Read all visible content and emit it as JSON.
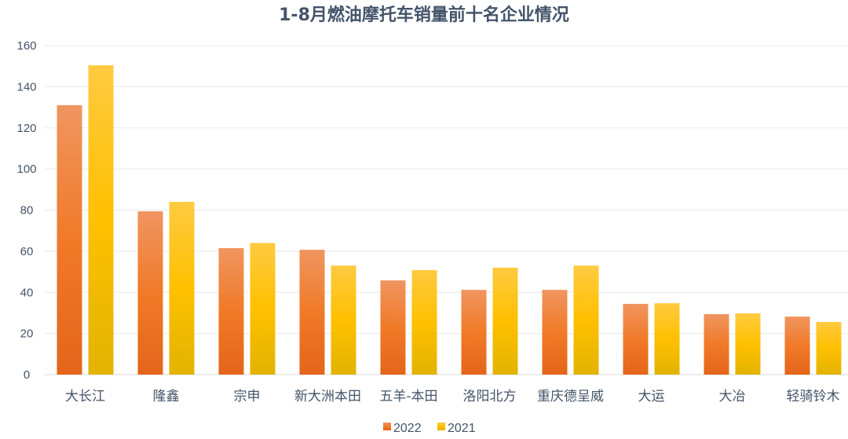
{
  "chart_data": {
    "type": "bar",
    "title": "1-8月燃油摩托车销量前十名企业情况",
    "xlabel": "",
    "ylabel": "",
    "ylim": [
      0,
      160
    ],
    "yticks": [
      0,
      20,
      40,
      60,
      80,
      100,
      120,
      140,
      160
    ],
    "grid": true,
    "legend_position": "bottom",
    "categories": [
      "大长江",
      "隆鑫",
      "宗申",
      "新大洲本田",
      "五羊-本田",
      "洛阳北方",
      "重庆德呈威",
      "大运",
      "大冶",
      "轻骑铃木"
    ],
    "series": [
      {
        "name": "2022",
        "color": "#ed7d31",
        "values": [
          131,
          79.4,
          61.5,
          60.7,
          45.8,
          41.2,
          41.2,
          34.4,
          29.4,
          28.2
        ]
      },
      {
        "name": "2021",
        "color": "#ffc000",
        "values": [
          150.4,
          84,
          64,
          53,
          50.8,
          52,
          53,
          34.7,
          29.8,
          25.6
        ]
      }
    ]
  }
}
